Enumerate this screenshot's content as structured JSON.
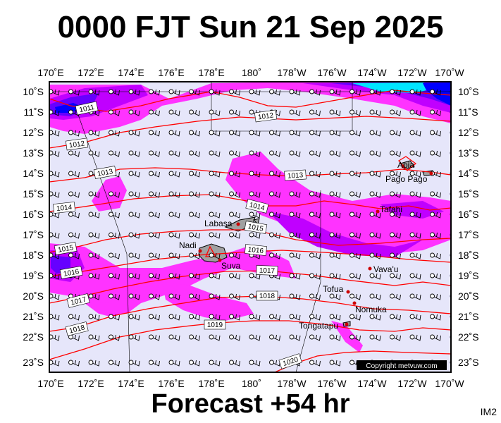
{
  "title": "0000 FJT Sun 21 Sep 2025",
  "footer": "Forecast +54 hr",
  "badge": "IM2",
  "copyright": "Copyright metvuw.com",
  "colors": {
    "ocean": "#e6e6fa",
    "rain_light": "#ff33ff",
    "rain_mid": "#c000ff",
    "rain_heavy": "#6600ff",
    "rain_extreme": "#0000ff",
    "rain_cyan": "#00e5ff",
    "isobar": "#ff0000",
    "land": "#a0a0a0",
    "frame": "#000000"
  },
  "lon_labels_top": [
    "170˚E",
    "172˚E",
    "174˚E",
    "176˚E",
    "178˚E",
    "180˚",
    "178˚W",
    "176˚W",
    "174˚W",
    "172˚W",
    "170˚W"
  ],
  "lon_labels_bottom": [
    "170˚E",
    "172˚E",
    "174˚E",
    "176˚E",
    "178˚E",
    "180˚",
    "178˚W",
    "176˚W",
    "174˚W",
    "172˚W",
    "170˚W"
  ],
  "lat_labels_left": [
    "10˚S",
    "11˚S",
    "12˚S",
    "13˚S",
    "14˚S",
    "15˚S",
    "16˚S",
    "17˚S",
    "18˚S",
    "19˚S",
    "20˚S",
    "21˚S",
    "22˚S",
    "23˚S"
  ],
  "lat_labels_right": [
    "10˚S",
    "11˚S",
    "12˚S",
    "13˚S",
    "14˚S",
    "15˚S",
    "16˚S",
    "17˚S",
    "18˚S",
    "19˚S",
    "20˚S",
    "21˚S",
    "22˚S",
    "23˚S"
  ],
  "isobar_labels": [
    "1011",
    "1012",
    "1012",
    "1013",
    "1013",
    "1014",
    "1014",
    "1015",
    "1015",
    "1016",
    "1016",
    "1017",
    "1017",
    "1018",
    "1018",
    "1019",
    "1020"
  ],
  "places": [
    {
      "name": "Apia"
    },
    {
      "name": "Pago Pago"
    },
    {
      "name": "Tafahi"
    },
    {
      "name": "Labasa"
    },
    {
      "name": "Nadi"
    },
    {
      "name": "Suva"
    },
    {
      "name": "Vava'u"
    },
    {
      "name": "Tofua"
    },
    {
      "name": "Nomuka"
    },
    {
      "name": "Tongatapu"
    }
  ]
}
